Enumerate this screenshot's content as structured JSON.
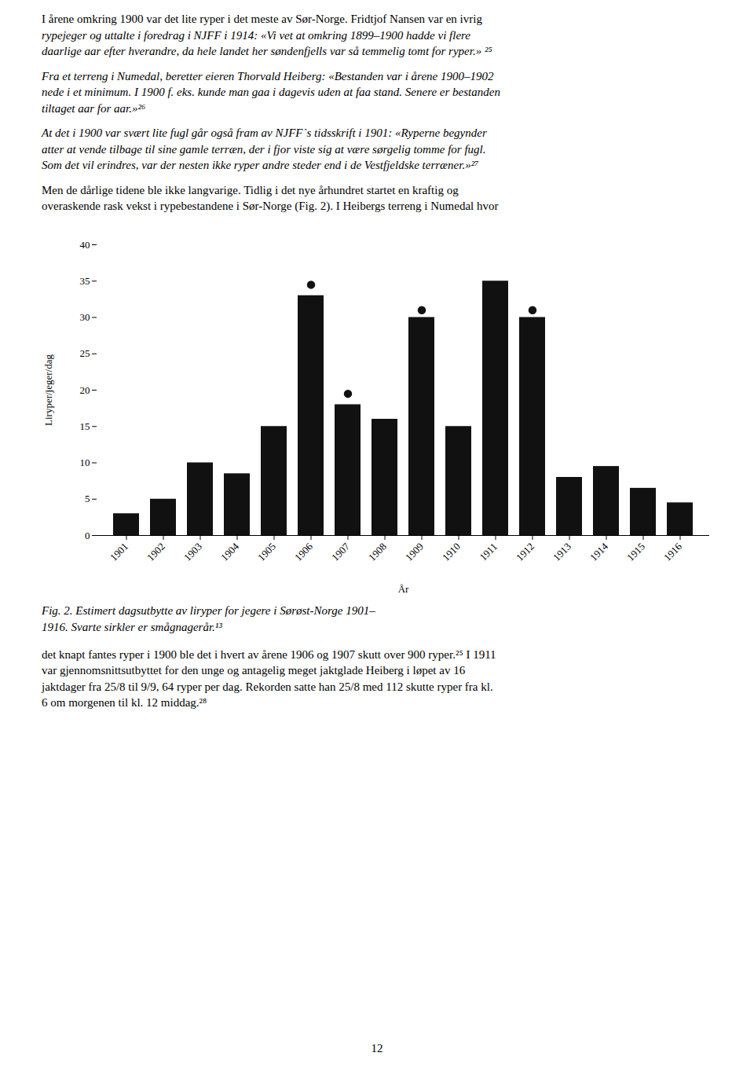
{
  "paragraphs_before": [
    [
      "I årene omkring 1900 var det  lite ryper i det meste av Sør-Norge. Fridtjof Nansen var en ivrig",
      "rypejeger og uttalte i foredrag i NJFF i 1914: «Vi vet at omkring 1899–1900 hadde vi flere",
      "daarlige aar efter hverandre, da hele landet her søndenfjells var så temmelig tomt for ryper.» ²⁵"
    ],
    [
      "Fra et terreng i Numedal, beretter eieren Thorvald Heiberg: «Bestanden var i årene 1900–1902",
      "nede i et minimum. I 1900 f. eks. kunde man gaa i dagevis uden at faa stand. Senere er bestanden",
      "tiltaget aar for aar.»²⁶"
    ],
    [
      "At det i 1900 var svært lite fugl går også fram av NJFF`s tidsskrift i 1901: «Ryperne begynder",
      "atter at vende tilbage til sine gamle terræn, der i fjor viste sig at være sørgelig tomme for fugl.",
      "Som det vil erindres, var der nesten ikke ryper andre steder end i de Vestfjeldske terræner.»²⁷"
    ],
    [
      "Men de dårlige tidene ble ikke langvarige. Tidlig i det nye århundret startet en kraftig og",
      "overaskende rask vekst i rypebestandene i Sør-Norge (Fig. 2). I Heibergs terreng i Numedal hvor"
    ]
  ],
  "chart_data": {
    "type": "bar",
    "caption": [
      "Fig. 2. Estimert dagsutbytte av liryper for jegere i Sørøst-Norge 1901–",
      "1916. Svarte sirkler er smågnagerår.¹³"
    ],
    "xlabel": "År",
    "ylabel": "Liryper/jeger/dag",
    "categories": [
      "1901",
      "1902",
      "1903",
      "1904",
      "1905",
      "1906",
      "1907",
      "1908",
      "1909",
      "1910",
      "1911",
      "1912",
      "1913",
      "1914",
      "1915",
      "1916"
    ],
    "series": [
      {
        "type": "bar",
        "color": "#111111",
        "values": [
          3,
          5,
          10,
          8.5,
          15,
          33,
          18,
          16,
          30,
          15,
          35,
          30,
          8,
          9.5,
          6.5,
          4.5
        ]
      },
      {
        "type": "scatter",
        "marker": "circle",
        "color": "#111111",
        "values": [
          null,
          null,
          null,
          null,
          null,
          34.5,
          19.5,
          null,
          31,
          null,
          null,
          31,
          null,
          null,
          null,
          null
        ]
      }
    ],
    "ylim": [
      0,
      40
    ],
    "yticks": [
      0,
      5,
      10,
      15,
      20,
      25,
      30,
      35,
      40
    ],
    "grid": false
  },
  "paragraphs_after": [
    [
      "det knapt fantes ryper i 1900 ble det i hvert av årene 1906 og 1907 skutt over 900 ryper.²⁵ I 1911",
      "var gjennomsnittsutbyttet for den unge og antagelig meget jaktglade Heiberg i løpet av 16",
      "jaktdager fra 25/8 til 9/9, 64 ryper per dag. Rekorden satte han 25/8 med 112 skutte ryper fra kl.",
      "6 om morgenen til kl. 12 middag.²⁸"
    ]
  ],
  "page_number": "12"
}
